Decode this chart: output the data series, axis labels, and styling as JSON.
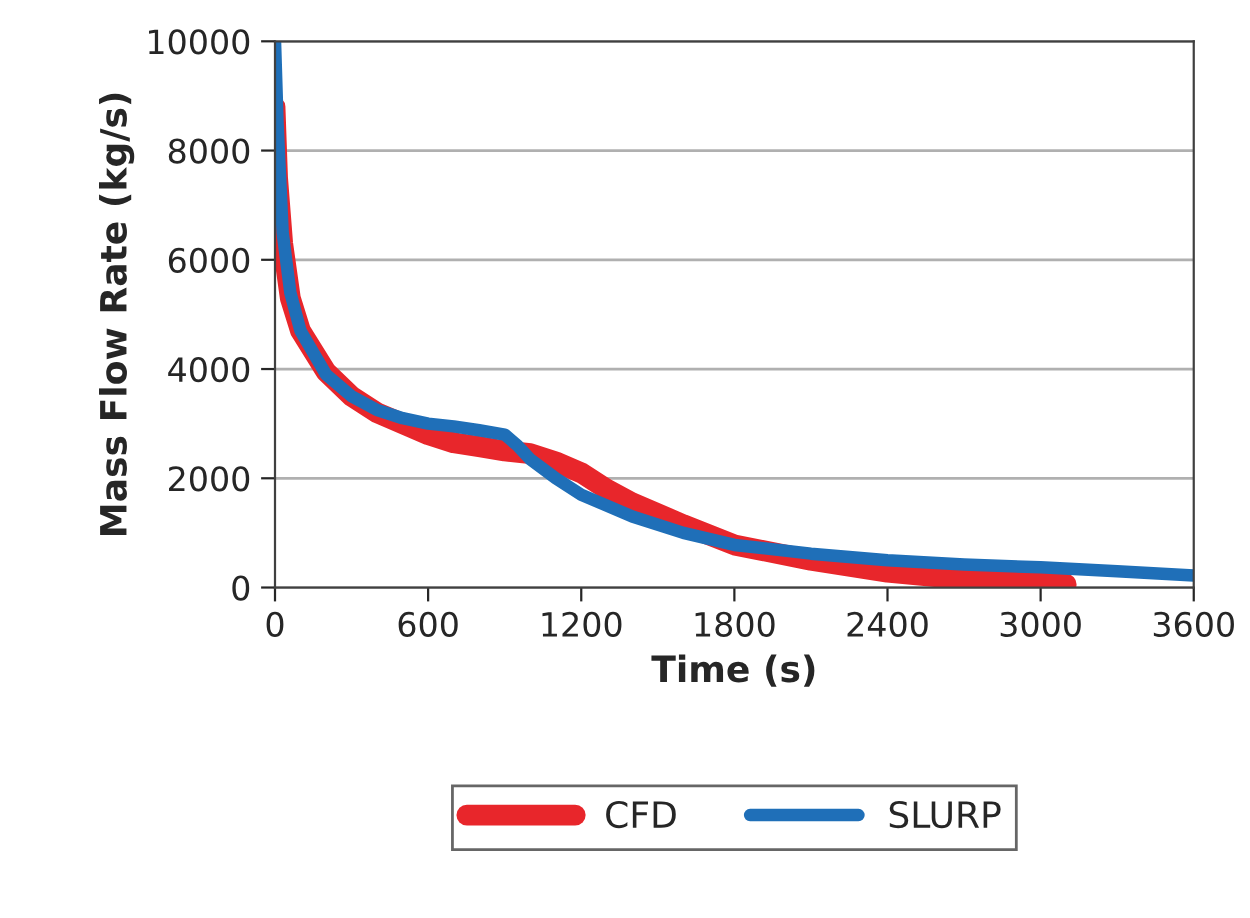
{
  "chart_data": {
    "type": "line",
    "xlabel": "Time (s)",
    "ylabel": "Mass Flow Rate (kg/s)",
    "xlim": [
      0,
      3600
    ],
    "xticks": [
      0,
      600,
      1200,
      1800,
      2400,
      3000,
      3600
    ],
    "ylim": [
      0,
      10000
    ],
    "yticks": [
      0,
      2000,
      4000,
      6000,
      8000,
      10000
    ],
    "grid": "y",
    "legend": "bottom",
    "marker": "none",
    "line_style": "solid",
    "series": [
      {
        "name": "CFD",
        "color": "#e8262b",
        "x": [
          0,
          10,
          30,
          60,
          100,
          200,
          300,
          400,
          500,
          600,
          700,
          800,
          900,
          1000,
          1100,
          1200,
          1300,
          1400,
          1600,
          1800,
          2100,
          2400,
          2700,
          3000,
          3100
        ],
        "values": [
          8800,
          7500,
          6300,
          5300,
          4700,
          3950,
          3500,
          3200,
          3000,
          2800,
          2650,
          2580,
          2500,
          2450,
          2300,
          2100,
          1800,
          1550,
          1150,
          780,
          500,
          280,
          150,
          80,
          60
        ]
      },
      {
        "name": "SLURP",
        "color": "#1f6fb8",
        "x": [
          0,
          10,
          30,
          60,
          100,
          200,
          300,
          400,
          500,
          600,
          700,
          800,
          900,
          950,
          1000,
          1100,
          1200,
          1400,
          1600,
          1800,
          2100,
          2400,
          2700,
          3000,
          3300,
          3600
        ],
        "values": [
          10000,
          8500,
          6500,
          5400,
          4700,
          3900,
          3500,
          3250,
          3100,
          3000,
          2950,
          2880,
          2800,
          2600,
          2350,
          2000,
          1700,
          1300,
          1000,
          780,
          620,
          500,
          420,
          370,
          300,
          220
        ]
      }
    ]
  }
}
